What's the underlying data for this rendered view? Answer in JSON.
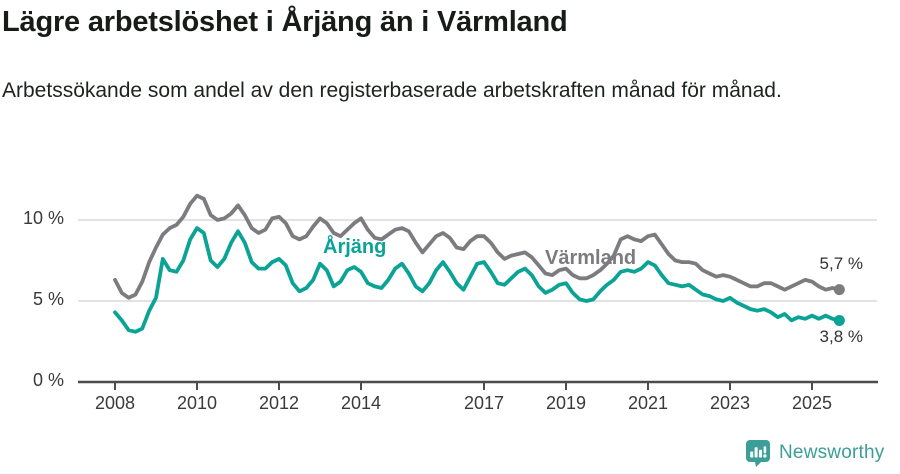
{
  "header": {
    "title": "Lägre arbetslöshet i Årjäng än i Värmland",
    "subtitle": "Arbetssökande som andel av den registerbaserade arbetskraften månad för månad."
  },
  "chart_data": {
    "type": "line",
    "title": "Lägre arbetslöshet i Årjäng än i Värmland",
    "subtitle": "Arbetssökande som andel av den registerbaserade arbetskraften månad för månad.",
    "grid": "horizontal",
    "legend_position": "inline-labels",
    "x_axis": {
      "start": 2008.0,
      "step_months": 2,
      "end": 2025.67,
      "ticks": [
        {
          "value": 2008,
          "label": "2008"
        },
        {
          "value": 2010,
          "label": "2010"
        },
        {
          "value": 2012,
          "label": "2012"
        },
        {
          "value": 2014,
          "label": "2014"
        },
        {
          "value": 2017,
          "label": "2017"
        },
        {
          "value": 2019,
          "label": "2019"
        },
        {
          "value": 2021,
          "label": "2021"
        },
        {
          "value": 2023,
          "label": "2023"
        },
        {
          "value": 2025,
          "label": "2025"
        }
      ]
    },
    "y_axis": {
      "unit": "%",
      "ylim": [
        0,
        11.8
      ],
      "gridlines": [
        5,
        10
      ],
      "ticks": [
        {
          "value": 0,
          "label": "0 %"
        },
        {
          "value": 5,
          "label": "5 %"
        },
        {
          "value": 10,
          "label": "10 %"
        }
      ]
    },
    "series": [
      {
        "id": "varmland",
        "name": "Värmland",
        "color": "#7b7b80",
        "end_label": "5,7 %",
        "end_value": 5.7,
        "values": [
          6.3,
          5.5,
          5.2,
          5.4,
          6.2,
          7.4,
          8.3,
          9.1,
          9.5,
          9.7,
          10.2,
          11.0,
          11.5,
          11.3,
          10.3,
          10.0,
          10.1,
          10.4,
          10.9,
          10.3,
          9.5,
          9.2,
          9.4,
          10.1,
          10.2,
          9.8,
          9.0,
          8.8,
          9.0,
          9.6,
          10.1,
          9.8,
          9.2,
          9.0,
          9.4,
          9.8,
          10.1,
          9.4,
          8.9,
          8.8,
          9.1,
          9.4,
          9.5,
          9.3,
          8.6,
          8.0,
          8.5,
          9.0,
          9.2,
          8.9,
          8.3,
          8.2,
          8.7,
          9.0,
          9.0,
          8.6,
          8.0,
          7.6,
          7.8,
          7.9,
          8.0,
          7.7,
          7.2,
          6.7,
          6.6,
          6.9,
          7.0,
          6.6,
          6.4,
          6.4,
          6.6,
          6.9,
          7.3,
          7.8,
          8.8,
          9.0,
          8.8,
          8.7,
          9.0,
          9.1,
          8.5,
          7.9,
          7.5,
          7.4,
          7.4,
          7.3,
          6.9,
          6.7,
          6.5,
          6.6,
          6.5,
          6.3,
          6.1,
          5.9,
          5.9,
          6.1,
          6.1,
          5.9,
          5.7,
          5.9,
          6.1,
          6.3,
          6.2,
          5.9,
          5.7,
          5.8,
          5.7
        ]
      },
      {
        "id": "arjang",
        "name": "Årjäng",
        "color": "#0aa396",
        "end_label": "3,8 %",
        "end_value": 3.8,
        "values": [
          4.3,
          3.8,
          3.2,
          3.1,
          3.3,
          4.4,
          5.2,
          7.6,
          6.9,
          6.8,
          7.5,
          8.8,
          9.5,
          9.2,
          7.5,
          7.1,
          7.6,
          8.6,
          9.3,
          8.6,
          7.4,
          7.0,
          7.0,
          7.4,
          7.6,
          7.2,
          6.1,
          5.6,
          5.8,
          6.3,
          7.3,
          6.9,
          5.9,
          6.2,
          6.9,
          7.1,
          6.8,
          6.1,
          5.9,
          5.8,
          6.3,
          7.0,
          7.3,
          6.7,
          5.9,
          5.6,
          6.1,
          6.9,
          7.4,
          6.8,
          6.1,
          5.7,
          6.5,
          7.3,
          7.4,
          6.8,
          6.1,
          6.0,
          6.4,
          6.8,
          7.0,
          6.6,
          5.9,
          5.5,
          5.7,
          6.0,
          6.1,
          5.5,
          5.1,
          5.0,
          5.1,
          5.6,
          6.0,
          6.3,
          6.8,
          6.9,
          6.8,
          7.0,
          7.4,
          7.2,
          6.6,
          6.1,
          6.0,
          5.9,
          6.0,
          5.7,
          5.4,
          5.3,
          5.1,
          5.0,
          5.2,
          4.9,
          4.7,
          4.5,
          4.4,
          4.5,
          4.3,
          4.0,
          4.2,
          3.8,
          4.0,
          3.9,
          4.1,
          3.9,
          4.1,
          3.9,
          3.8
        ]
      }
    ]
  },
  "footer": {
    "brand": "Newsworthy"
  },
  "colors": {
    "accent_teal": "#0aa396",
    "series_gray": "#7b7b80",
    "brand_teal": "#3b9e99",
    "gridline": "#e2e2e2",
    "axis": "#4d4d4d",
    "text_dark": "#171c18"
  }
}
